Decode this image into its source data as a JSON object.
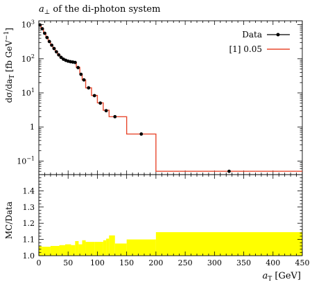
{
  "chart_data": [
    {
      "type": "line",
      "title": "a⊥ of the di-photon system",
      "title_symbol": "a",
      "title_sub": "⊥",
      "title_rest": " of the di-photon system",
      "ylabel": "dσ/da_T [fb GeV⁻¹]",
      "ylabel_text": "dσ/da",
      "ylabel_sub": "T",
      "ylabel_unit": " [fb GeV",
      "ylabel_sup": "−1",
      "ylabel_close": "]",
      "yscale": "log",
      "xlim": [
        0,
        450
      ],
      "ylim": [
        0.04,
        1300
      ],
      "y_tick_labels": [
        {
          "value": 1000,
          "base": "10",
          "exp": "3"
        },
        {
          "value": 100,
          "base": "10",
          "exp": "2"
        },
        {
          "value": 10,
          "base": "10",
          "exp": "1"
        },
        {
          "value": 1,
          "base": "1",
          "exp": ""
        },
        {
          "value": 0.1,
          "base": "10",
          "exp": "−1"
        }
      ],
      "legend_position": "top-right",
      "series": [
        {
          "name": "Data",
          "color": "#000000",
          "points": [
            {
              "x": 2,
              "y": 980
            },
            {
              "x": 6,
              "y": 760
            },
            {
              "x": 10,
              "y": 560
            },
            {
              "x": 14,
              "y": 420
            },
            {
              "x": 18,
              "y": 320
            },
            {
              "x": 22,
              "y": 250
            },
            {
              "x": 26,
              "y": 200
            },
            {
              "x": 30,
              "y": 160
            },
            {
              "x": 34,
              "y": 130
            },
            {
              "x": 38,
              "y": 110
            },
            {
              "x": 42,
              "y": 97
            },
            {
              "x": 46,
              "y": 90
            },
            {
              "x": 50,
              "y": 85
            },
            {
              "x": 54,
              "y": 82
            },
            {
              "x": 58,
              "y": 80
            },
            {
              "x": 62,
              "y": 78
            },
            {
              "x": 67,
              "y": 55
            },
            {
              "x": 72,
              "y": 35
            },
            {
              "x": 77,
              "y": 24
            },
            {
              "x": 85,
              "y": 14
            },
            {
              "x": 95,
              "y": 8.3
            },
            {
              "x": 105,
              "y": 5.0
            },
            {
              "x": 115,
              "y": 3.0
            },
            {
              "x": 130,
              "y": 2.0
            },
            {
              "x": 175,
              "y": 0.62
            },
            {
              "x": 325,
              "y": 0.05
            }
          ]
        },
        {
          "name": "[1] 0.05",
          "color": "#e8482e",
          "bins": [
            {
              "lo": 0,
              "hi": 4,
              "y": 1000
            },
            {
              "lo": 4,
              "hi": 8,
              "y": 770
            },
            {
              "lo": 8,
              "hi": 12,
              "y": 570
            },
            {
              "lo": 12,
              "hi": 16,
              "y": 425
            },
            {
              "lo": 16,
              "hi": 20,
              "y": 325
            },
            {
              "lo": 20,
              "hi": 24,
              "y": 255
            },
            {
              "lo": 24,
              "hi": 28,
              "y": 203
            },
            {
              "lo": 28,
              "hi": 32,
              "y": 163
            },
            {
              "lo": 32,
              "hi": 36,
              "y": 132
            },
            {
              "lo": 36,
              "hi": 40,
              "y": 112
            },
            {
              "lo": 40,
              "hi": 44,
              "y": 98
            },
            {
              "lo": 44,
              "hi": 48,
              "y": 91
            },
            {
              "lo": 48,
              "hi": 52,
              "y": 86
            },
            {
              "lo": 52,
              "hi": 56,
              "y": 83
            },
            {
              "lo": 56,
              "hi": 60,
              "y": 81
            },
            {
              "lo": 60,
              "hi": 64,
              "y": 79
            },
            {
              "lo": 64,
              "hi": 70,
              "y": 56
            },
            {
              "lo": 70,
              "hi": 74,
              "y": 36
            },
            {
              "lo": 74,
              "hi": 80,
              "y": 24
            },
            {
              "lo": 80,
              "hi": 90,
              "y": 14
            },
            {
              "lo": 90,
              "hi": 100,
              "y": 8.4
            },
            {
              "lo": 100,
              "hi": 110,
              "y": 5.1
            },
            {
              "lo": 110,
              "hi": 120,
              "y": 3.1
            },
            {
              "lo": 120,
              "hi": 140,
              "y": 2.0
            },
            {
              "lo": 140,
              "hi": 150,
              "y": 2.0
            },
            {
              "lo": 150,
              "hi": 200,
              "y": 0.62
            },
            {
              "lo": 200,
              "hi": 450,
              "y": 0.05
            }
          ]
        }
      ]
    },
    {
      "type": "area",
      "ylabel": "MC/Data",
      "xlabel": "a_T [GeV]",
      "xlabel_symbol": "a",
      "xlabel_sub": "T",
      "xlabel_unit": " [GeV]",
      "xlim": [
        0,
        450
      ],
      "ylim": [
        1.0,
        1.5
      ],
      "x_ticks": [
        0,
        50,
        100,
        150,
        200,
        250,
        300,
        350,
        400,
        450
      ],
      "y_ticks": [
        "1.0",
        "1.1",
        "1.2",
        "1.3",
        "1.4"
      ],
      "band_color": "#ffff00",
      "series": [
        {
          "name": "",
          "bins": [
            {
              "lo": 0,
              "hi": 5,
              "y": 1.06
            },
            {
              "lo": 5,
              "hi": 20,
              "y": 1.055
            },
            {
              "lo": 20,
              "hi": 35,
              "y": 1.06
            },
            {
              "lo": 35,
              "hi": 45,
              "y": 1.065
            },
            {
              "lo": 45,
              "hi": 55,
              "y": 1.07
            },
            {
              "lo": 55,
              "hi": 62,
              "y": 1.065
            },
            {
              "lo": 62,
              "hi": 68,
              "y": 1.09
            },
            {
              "lo": 68,
              "hi": 74,
              "y": 1.07
            },
            {
              "lo": 74,
              "hi": 80,
              "y": 1.095
            },
            {
              "lo": 80,
              "hi": 95,
              "y": 1.085
            },
            {
              "lo": 95,
              "hi": 110,
              "y": 1.085
            },
            {
              "lo": 110,
              "hi": 115,
              "y": 1.095
            },
            {
              "lo": 115,
              "hi": 120,
              "y": 1.105
            },
            {
              "lo": 120,
              "hi": 130,
              "y": 1.125
            },
            {
              "lo": 130,
              "hi": 150,
              "y": 1.075
            },
            {
              "lo": 150,
              "hi": 200,
              "y": 1.1
            },
            {
              "lo": 200,
              "hi": 450,
              "y": 1.145
            }
          ]
        }
      ]
    }
  ]
}
